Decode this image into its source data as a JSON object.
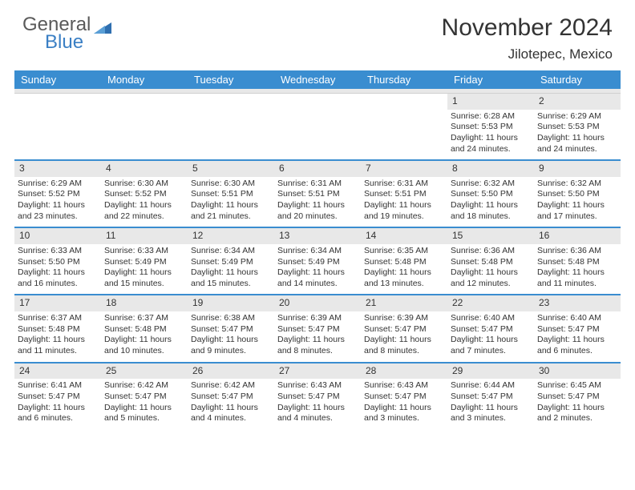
{
  "brand": {
    "part1": "General",
    "part2": "Blue"
  },
  "title": "November 2024",
  "location": "Jilotepec, Mexico",
  "colors": {
    "header_bg": "#3a8dd0",
    "row_divider": "#3a8dd0",
    "daynum_bg": "#e8e8e8",
    "text": "#333333",
    "logo_gray": "#5a5a5a",
    "logo_blue": "#3a7fc4",
    "page_bg": "#ffffff"
  },
  "typography": {
    "title_fontsize": 30,
    "location_fontsize": 17,
    "dayheader_fontsize": 13,
    "cell_fontsize": 10.5,
    "daynum_fontsize": 12
  },
  "day_headers": [
    "Sunday",
    "Monday",
    "Tuesday",
    "Wednesday",
    "Thursday",
    "Friday",
    "Saturday"
  ],
  "weeks": [
    [
      {
        "n": "",
        "sr": "",
        "ss": "",
        "dl": ""
      },
      {
        "n": "",
        "sr": "",
        "ss": "",
        "dl": ""
      },
      {
        "n": "",
        "sr": "",
        "ss": "",
        "dl": ""
      },
      {
        "n": "",
        "sr": "",
        "ss": "",
        "dl": ""
      },
      {
        "n": "",
        "sr": "",
        "ss": "",
        "dl": ""
      },
      {
        "n": "1",
        "sr": "Sunrise: 6:28 AM",
        "ss": "Sunset: 5:53 PM",
        "dl": "Daylight: 11 hours and 24 minutes."
      },
      {
        "n": "2",
        "sr": "Sunrise: 6:29 AM",
        "ss": "Sunset: 5:53 PM",
        "dl": "Daylight: 11 hours and 24 minutes."
      }
    ],
    [
      {
        "n": "3",
        "sr": "Sunrise: 6:29 AM",
        "ss": "Sunset: 5:52 PM",
        "dl": "Daylight: 11 hours and 23 minutes."
      },
      {
        "n": "4",
        "sr": "Sunrise: 6:30 AM",
        "ss": "Sunset: 5:52 PM",
        "dl": "Daylight: 11 hours and 22 minutes."
      },
      {
        "n": "5",
        "sr": "Sunrise: 6:30 AM",
        "ss": "Sunset: 5:51 PM",
        "dl": "Daylight: 11 hours and 21 minutes."
      },
      {
        "n": "6",
        "sr": "Sunrise: 6:31 AM",
        "ss": "Sunset: 5:51 PM",
        "dl": "Daylight: 11 hours and 20 minutes."
      },
      {
        "n": "7",
        "sr": "Sunrise: 6:31 AM",
        "ss": "Sunset: 5:51 PM",
        "dl": "Daylight: 11 hours and 19 minutes."
      },
      {
        "n": "8",
        "sr": "Sunrise: 6:32 AM",
        "ss": "Sunset: 5:50 PM",
        "dl": "Daylight: 11 hours and 18 minutes."
      },
      {
        "n": "9",
        "sr": "Sunrise: 6:32 AM",
        "ss": "Sunset: 5:50 PM",
        "dl": "Daylight: 11 hours and 17 minutes."
      }
    ],
    [
      {
        "n": "10",
        "sr": "Sunrise: 6:33 AM",
        "ss": "Sunset: 5:50 PM",
        "dl": "Daylight: 11 hours and 16 minutes."
      },
      {
        "n": "11",
        "sr": "Sunrise: 6:33 AM",
        "ss": "Sunset: 5:49 PM",
        "dl": "Daylight: 11 hours and 15 minutes."
      },
      {
        "n": "12",
        "sr": "Sunrise: 6:34 AM",
        "ss": "Sunset: 5:49 PM",
        "dl": "Daylight: 11 hours and 15 minutes."
      },
      {
        "n": "13",
        "sr": "Sunrise: 6:34 AM",
        "ss": "Sunset: 5:49 PM",
        "dl": "Daylight: 11 hours and 14 minutes."
      },
      {
        "n": "14",
        "sr": "Sunrise: 6:35 AM",
        "ss": "Sunset: 5:48 PM",
        "dl": "Daylight: 11 hours and 13 minutes."
      },
      {
        "n": "15",
        "sr": "Sunrise: 6:36 AM",
        "ss": "Sunset: 5:48 PM",
        "dl": "Daylight: 11 hours and 12 minutes."
      },
      {
        "n": "16",
        "sr": "Sunrise: 6:36 AM",
        "ss": "Sunset: 5:48 PM",
        "dl": "Daylight: 11 hours and 11 minutes."
      }
    ],
    [
      {
        "n": "17",
        "sr": "Sunrise: 6:37 AM",
        "ss": "Sunset: 5:48 PM",
        "dl": "Daylight: 11 hours and 11 minutes."
      },
      {
        "n": "18",
        "sr": "Sunrise: 6:37 AM",
        "ss": "Sunset: 5:48 PM",
        "dl": "Daylight: 11 hours and 10 minutes."
      },
      {
        "n": "19",
        "sr": "Sunrise: 6:38 AM",
        "ss": "Sunset: 5:47 PM",
        "dl": "Daylight: 11 hours and 9 minutes."
      },
      {
        "n": "20",
        "sr": "Sunrise: 6:39 AM",
        "ss": "Sunset: 5:47 PM",
        "dl": "Daylight: 11 hours and 8 minutes."
      },
      {
        "n": "21",
        "sr": "Sunrise: 6:39 AM",
        "ss": "Sunset: 5:47 PM",
        "dl": "Daylight: 11 hours and 8 minutes."
      },
      {
        "n": "22",
        "sr": "Sunrise: 6:40 AM",
        "ss": "Sunset: 5:47 PM",
        "dl": "Daylight: 11 hours and 7 minutes."
      },
      {
        "n": "23",
        "sr": "Sunrise: 6:40 AM",
        "ss": "Sunset: 5:47 PM",
        "dl": "Daylight: 11 hours and 6 minutes."
      }
    ],
    [
      {
        "n": "24",
        "sr": "Sunrise: 6:41 AM",
        "ss": "Sunset: 5:47 PM",
        "dl": "Daylight: 11 hours and 6 minutes."
      },
      {
        "n": "25",
        "sr": "Sunrise: 6:42 AM",
        "ss": "Sunset: 5:47 PM",
        "dl": "Daylight: 11 hours and 5 minutes."
      },
      {
        "n": "26",
        "sr": "Sunrise: 6:42 AM",
        "ss": "Sunset: 5:47 PM",
        "dl": "Daylight: 11 hours and 4 minutes."
      },
      {
        "n": "27",
        "sr": "Sunrise: 6:43 AM",
        "ss": "Sunset: 5:47 PM",
        "dl": "Daylight: 11 hours and 4 minutes."
      },
      {
        "n": "28",
        "sr": "Sunrise: 6:43 AM",
        "ss": "Sunset: 5:47 PM",
        "dl": "Daylight: 11 hours and 3 minutes."
      },
      {
        "n": "29",
        "sr": "Sunrise: 6:44 AM",
        "ss": "Sunset: 5:47 PM",
        "dl": "Daylight: 11 hours and 3 minutes."
      },
      {
        "n": "30",
        "sr": "Sunrise: 6:45 AM",
        "ss": "Sunset: 5:47 PM",
        "dl": "Daylight: 11 hours and 2 minutes."
      }
    ]
  ]
}
